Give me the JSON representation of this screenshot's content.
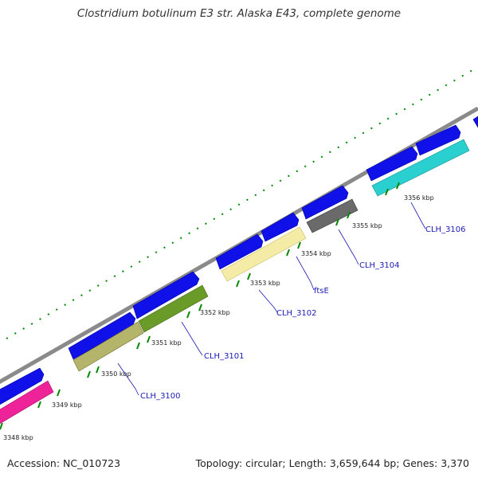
{
  "title": "Clostridium botulinum E3 str. Alaska E43, complete genome",
  "accession": "Accession: NC_010723",
  "summary": "Topology: circular; Length: 3,659,644 bp; Genes: 3,370",
  "colors": {
    "backbone": "#8a8a8a",
    "forward_cds": "#1010e8",
    "tick": "#007700",
    "label_line": "#1a1ab8"
  },
  "ticks": [
    {
      "label": "3348 kbp"
    },
    {
      "label": "3349 kbp"
    },
    {
      "label": "3350 kbp"
    },
    {
      "label": "3351 kbp"
    },
    {
      "label": "3352 kbp"
    },
    {
      "label": "3353 kbp"
    },
    {
      "label": "3354 kbp"
    },
    {
      "label": "3355 kbp"
    },
    {
      "label": "3356 kbp"
    }
  ],
  "gene_labels": [
    {
      "name": "CLH_3100",
      "color": "#8a8a3e"
    },
    {
      "name": "CLH_3101",
      "color": "#5e8a1e"
    },
    {
      "name": "CLH_3102",
      "color": "#f0e9a0"
    },
    {
      "name": "ftsE",
      "color": "#f0e9a0"
    },
    {
      "name": "CLH_3104",
      "color": "#666666"
    },
    {
      "name": "CLH_3106",
      "color": "#20c8c8"
    }
  ]
}
